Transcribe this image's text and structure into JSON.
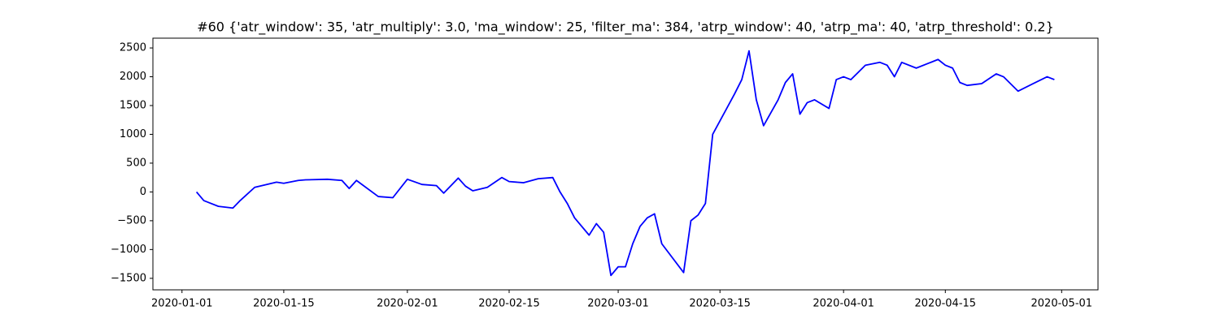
{
  "chart_data": {
    "type": "line",
    "title": "#60 {'atr_window': 35, 'atr_multiply': 3.0, 'ma_window': 25, 'filter_ma': 384, 'atrp_window': 40, 'atrp_ma': 40, 'atrp_threshold': 0.2}",
    "x": [
      "2020-01-03",
      "2020-01-04",
      "2020-01-06",
      "2020-01-08",
      "2020-01-09",
      "2020-01-11",
      "2020-01-14",
      "2020-01-15",
      "2020-01-17",
      "2020-01-18",
      "2020-01-21",
      "2020-01-23",
      "2020-01-24",
      "2020-01-25",
      "2020-01-28",
      "2020-01-30",
      "2020-02-01",
      "2020-02-03",
      "2020-02-05",
      "2020-02-06",
      "2020-02-08",
      "2020-02-09",
      "2020-02-10",
      "2020-02-12",
      "2020-02-14",
      "2020-02-15",
      "2020-02-17",
      "2020-02-19",
      "2020-02-21",
      "2020-02-22",
      "2020-02-23",
      "2020-02-24",
      "2020-02-26",
      "2020-02-27",
      "2020-02-28",
      "2020-02-29",
      "2020-03-01",
      "2020-03-02",
      "2020-03-03",
      "2020-03-04",
      "2020-03-05",
      "2020-03-06",
      "2020-03-07",
      "2020-03-10",
      "2020-03-11",
      "2020-03-12",
      "2020-03-13",
      "2020-03-14",
      "2020-03-17",
      "2020-03-18",
      "2020-03-19",
      "2020-03-20",
      "2020-03-21",
      "2020-03-23",
      "2020-03-24",
      "2020-03-25",
      "2020-03-26",
      "2020-03-27",
      "2020-03-28",
      "2020-03-30",
      "2020-03-31",
      "2020-04-01",
      "2020-04-02",
      "2020-04-04",
      "2020-04-06",
      "2020-04-07",
      "2020-04-08",
      "2020-04-09",
      "2020-04-11",
      "2020-04-14",
      "2020-04-15",
      "2020-04-16",
      "2020-04-17",
      "2020-04-18",
      "2020-04-20",
      "2020-04-22",
      "2020-04-23",
      "2020-04-25",
      "2020-04-29",
      "2020-04-30"
    ],
    "values": [
      0,
      -150,
      -250,
      -280,
      -150,
      80,
      170,
      150,
      200,
      210,
      220,
      200,
      60,
      200,
      -80,
      -100,
      220,
      130,
      110,
      -20,
      240,
      100,
      20,
      80,
      250,
      180,
      160,
      230,
      250,
      0,
      -200,
      -450,
      -750,
      -550,
      -700,
      -1450,
      -1300,
      -1300,
      -900,
      -600,
      -450,
      -380,
      -900,
      -1400,
      -500,
      -400,
      -200,
      1000,
      1700,
      1950,
      2450,
      1600,
      1150,
      1600,
      1900,
      2050,
      1350,
      1550,
      1600,
      1450,
      1950,
      2000,
      1950,
      2200,
      2250,
      2200,
      2000,
      2250,
      2150,
      2300,
      2200,
      2150,
      1900,
      1850,
      1880,
      2050,
      2000,
      1750,
      2000,
      1950
    ],
    "color": "#0000ff",
    "xlim": [
      "2019-12-28",
      "2020-05-06"
    ],
    "xticks": [
      "2020-01-01",
      "2020-01-15",
      "2020-02-01",
      "2020-02-15",
      "2020-03-01",
      "2020-03-15",
      "2020-04-01",
      "2020-04-15",
      "2020-05-01"
    ],
    "ylim": [
      -1700,
      2670
    ],
    "yticks": [
      {
        "value": -1500,
        "label": "−1500"
      },
      {
        "value": -1000,
        "label": "−1000"
      },
      {
        "value": -500,
        "label": "−500"
      },
      0,
      500,
      1000,
      1500,
      2000,
      2500
    ]
  }
}
